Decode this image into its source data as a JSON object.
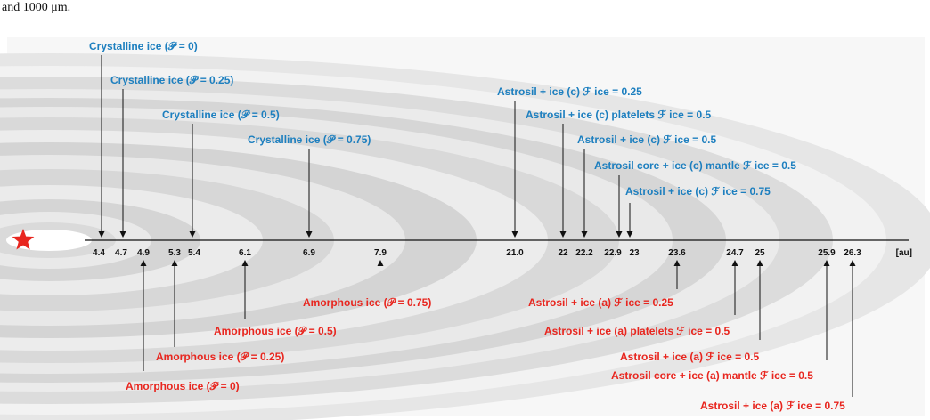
{
  "caption": "disk models of sweeping growth of ice-mixture grains — distances of the ice-line for the grain types at 1, 10, 100 and 1000 μm.",
  "caption_visible": "and 1000 μm.",
  "colors": {
    "crystalline": "#1d7fbf",
    "amorphous": "#e8261f",
    "axis": "#111111",
    "star": "#e8261f",
    "disk_light": "#ececec",
    "disk_mid": "#d9d9d9",
    "disk_dark": "#cfcfcf"
  },
  "axis": {
    "unit": "[au]",
    "ticks": [
      "4.4",
      "4.7",
      "4.9",
      "5.3",
      "5.4",
      "6.1",
      "6.9",
      "7.9",
      "21.0",
      "22",
      "22.2",
      "22.9",
      "23",
      "23.6",
      "24.7",
      "25",
      "25.9",
      "26.3"
    ]
  },
  "top_labels": [
    {
      "text": "Crystalline ice (𝒫 = 0)",
      "tick": "4.4"
    },
    {
      "text": "Crystalline ice (𝒫 = 0.25)",
      "tick": "4.7"
    },
    {
      "text": "Crystalline ice (𝒫 = 0.5)",
      "tick": "5.4"
    },
    {
      "text": "Crystalline ice (𝒫 = 0.75)",
      "tick": "6.9"
    },
    {
      "text": "Astrosil + ice (c) ℱ ice = 0.25",
      "tick": "21.0"
    },
    {
      "text": "Astrosil + ice (c) platelets ℱ ice = 0.5",
      "tick": "22"
    },
    {
      "text": "Astrosil + ice (c) ℱ ice = 0.5",
      "tick": "22.2"
    },
    {
      "text": "Astrosil core + ice (c) mantle ℱ ice = 0.5",
      "tick": "22.9"
    },
    {
      "text": "Astrosil + ice (c) ℱ ice = 0.75",
      "tick": "23"
    }
  ],
  "bottom_labels": [
    {
      "text": "Amorphous ice (𝒫 = 0.75)",
      "tick": "7.9"
    },
    {
      "text": "Amorphous ice (𝒫 = 0.5)",
      "tick": "6.1"
    },
    {
      "text": "Amorphous ice (𝒫 = 0.25)",
      "tick": "5.3"
    },
    {
      "text": "Amorphous ice (𝒫 = 0)",
      "tick": "4.9"
    },
    {
      "text": "Astrosil + ice (a) ℱ ice = 0.25",
      "tick": "23.6"
    },
    {
      "text": "Astrosil + ice (a) platelets ℱ ice = 0.5",
      "tick": "24.7"
    },
    {
      "text": "Astrosil + ice (a) ℱ ice = 0.5",
      "tick": "25"
    },
    {
      "text": "Astrosil core + ice (a) mantle ℱ ice = 0.5",
      "tick": "25.9"
    },
    {
      "text": "Astrosil + ice (a) ℱ ice = 0.75",
      "tick": "26.3"
    }
  ]
}
